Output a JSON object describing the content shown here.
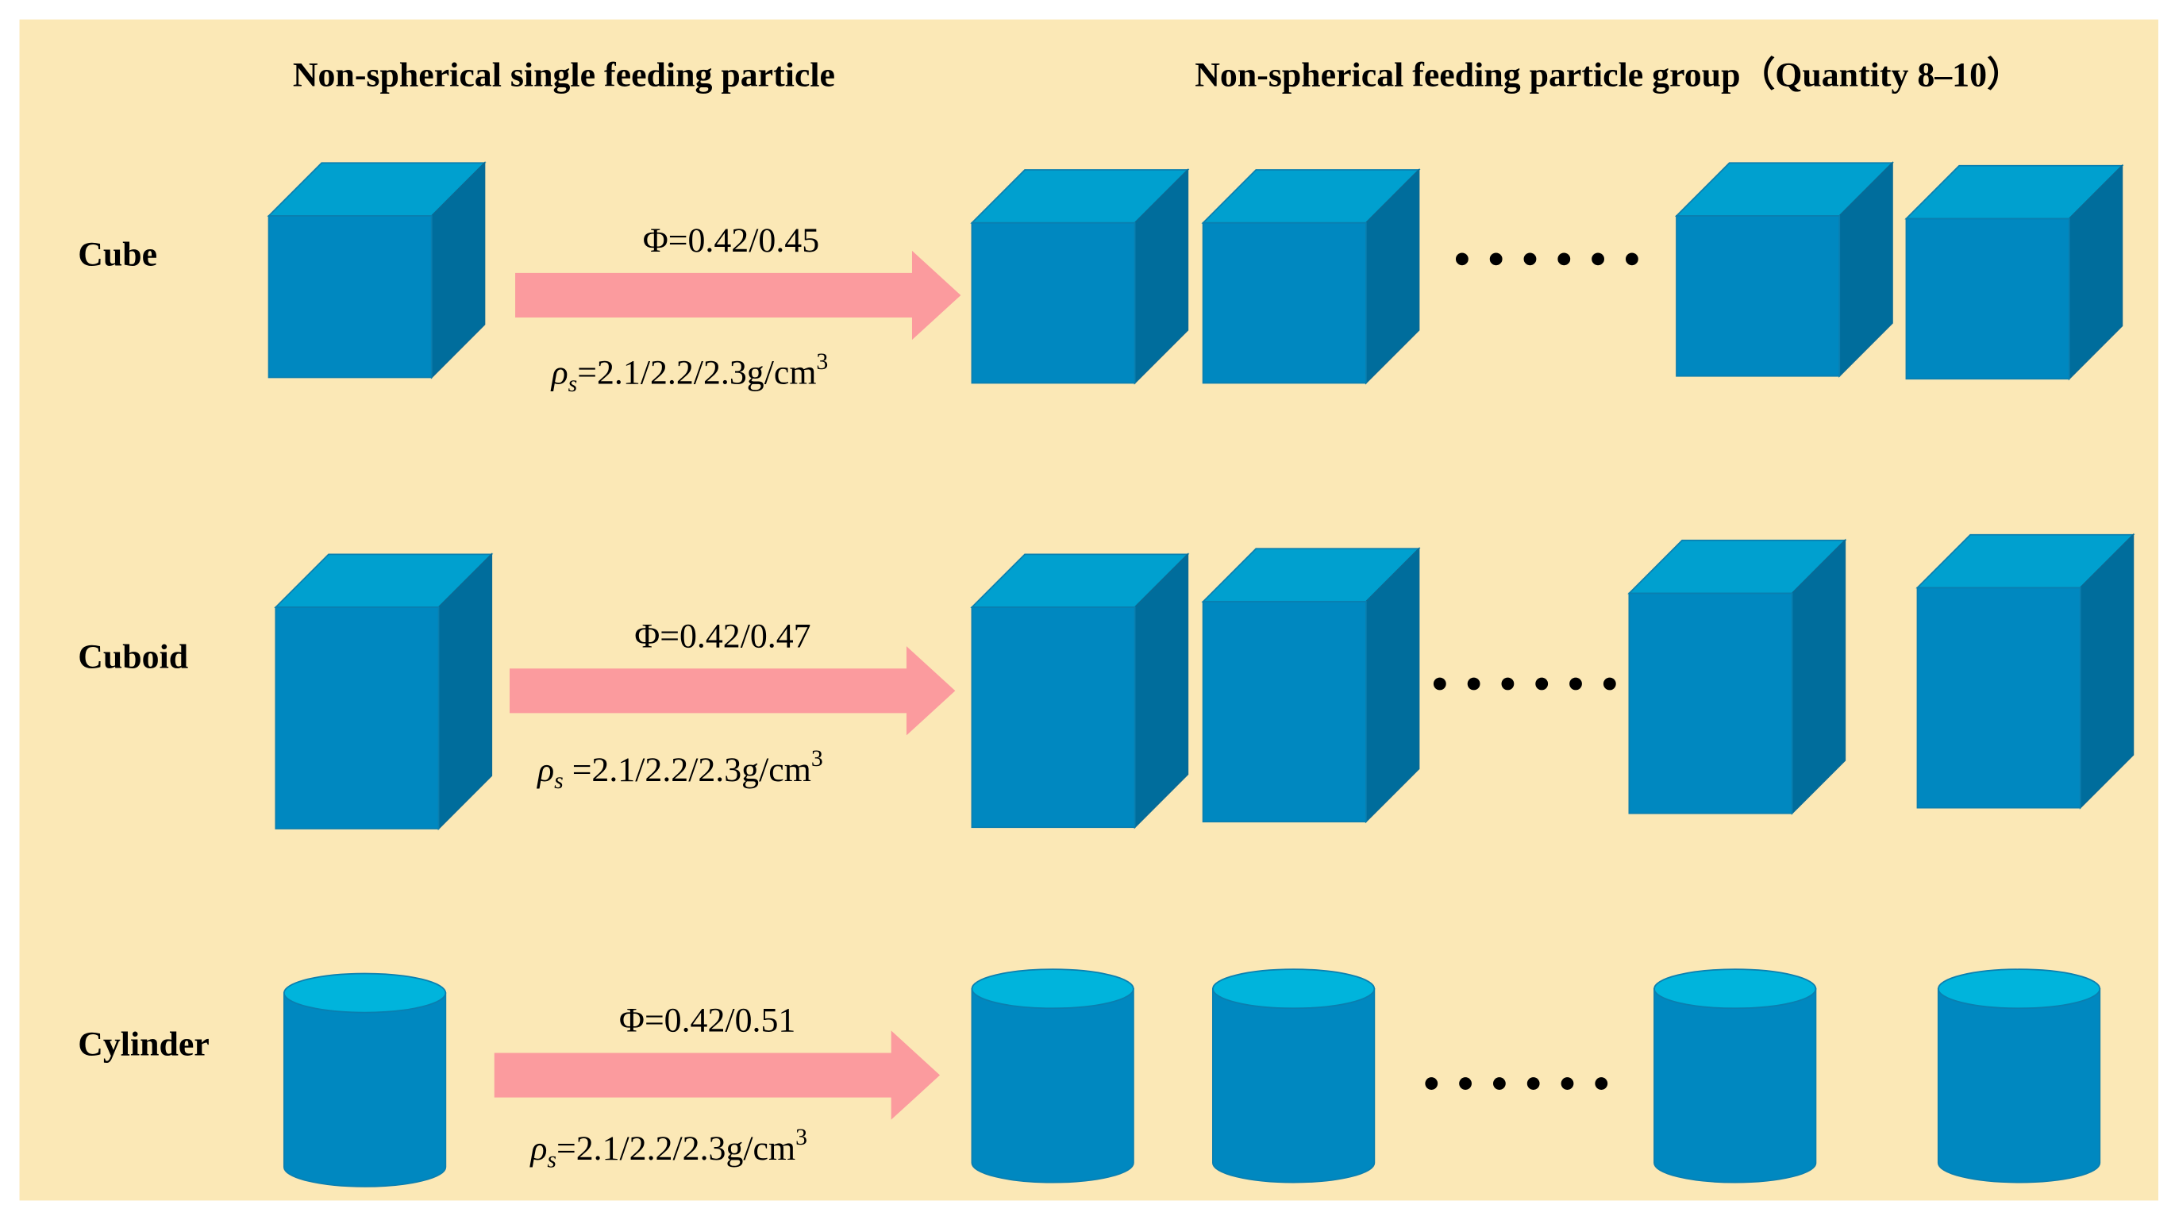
{
  "headers": {
    "single": "Non-spherical single feeding particle",
    "group": "Non-spherical feeding particle group（Quantity 8–10）"
  },
  "rows": [
    {
      "label": "Cube",
      "phi": "Φ=0.42/0.45",
      "rho_symbol": "ρ",
      "rho_sub": "s",
      "rho_value": "=2.1/2.2/2.3g/cm",
      "rho_sup": "3"
    },
    {
      "label": "Cuboid",
      "phi": "Φ=0.42/0.47",
      "rho_symbol": "ρ",
      "rho_sub": "s",
      "rho_value": " =2.1/2.2/2.3g/cm",
      "rho_sup": "3"
    },
    {
      "label": "Cylinder",
      "phi": "Φ=0.42/0.51",
      "rho_symbol": "ρ",
      "rho_sub": "s",
      "rho_value": "=2.1/2.2/2.3g/cm",
      "rho_sup": "3"
    }
  ]
}
